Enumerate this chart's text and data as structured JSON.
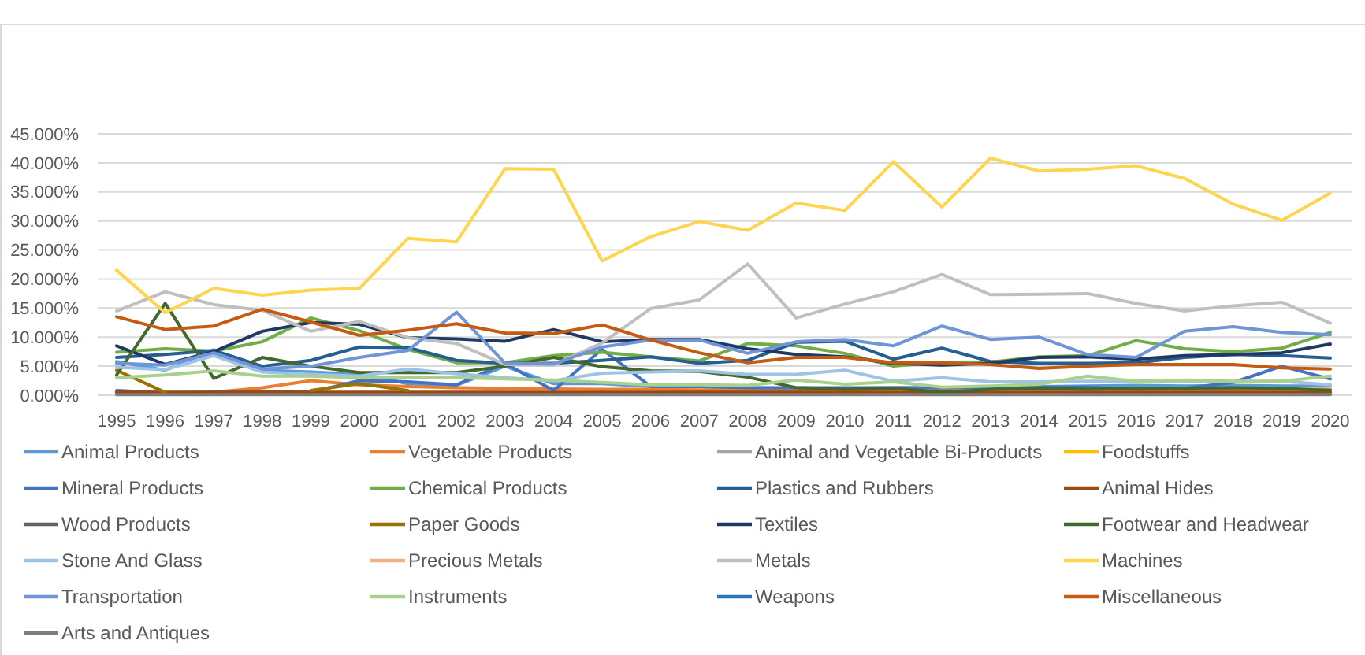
{
  "chart_data": {
    "type": "line",
    "categories": [
      "1995",
      "1996",
      "1997",
      "1998",
      "1999",
      "2000",
      "2001",
      "2002",
      "2003",
      "2004",
      "2005",
      "2006",
      "2007",
      "2008",
      "2009",
      "2010",
      "2011",
      "2012",
      "2013",
      "2014",
      "2015",
      "2016",
      "2017",
      "2018",
      "2019",
      "2020"
    ],
    "ylim": [
      0,
      45
    ],
    "yticks": [
      {
        "value": 0,
        "label": "0.000%"
      },
      {
        "value": 5,
        "label": "5.000%"
      },
      {
        "value": 10,
        "label": "10.000%"
      },
      {
        "value": 15,
        "label": "15.000%"
      },
      {
        "value": 20,
        "label": "20.000%"
      },
      {
        "value": 25,
        "label": "25.000%"
      },
      {
        "value": 30,
        "label": "30.000%"
      },
      {
        "value": 35,
        "label": "35.000%"
      },
      {
        "value": 40,
        "label": "40.000%"
      },
      {
        "value": 45,
        "label": "45.000%"
      }
    ],
    "grid": "y",
    "legend": "bottom",
    "marker": "none",
    "line_style": "solid",
    "series": [
      {
        "name": "Animal Products",
        "color": "#5b9bd5",
        "values": [
          5.8,
          4.3,
          7.8,
          4.3,
          4,
          3.6,
          2,
          1.7,
          5,
          2,
          2,
          1.5,
          1.5,
          1.3,
          1.2,
          1.2,
          1.3,
          1.3,
          1.5,
          1.5,
          1.6,
          1.7,
          1.6,
          1.7,
          1.6,
          1.6
        ]
      },
      {
        "name": "Vegetable Products",
        "color": "#ed7d31",
        "values": [
          0.5,
          0.3,
          0.5,
          1.3,
          2.5,
          1.8,
          1.5,
          1.3,
          1.2,
          1.1,
          1,
          1,
          0.9,
          0.9,
          0.9,
          0.9,
          1,
          1,
          1,
          1,
          1,
          1,
          1,
          1,
          1,
          1
        ]
      },
      {
        "name": "Animal and Vegetable Bi-Products",
        "color": "#a5a5a5",
        "values": [
          null,
          null,
          null,
          null,
          null,
          null,
          null,
          null,
          null,
          null,
          null,
          null,
          null,
          null,
          null,
          null,
          null,
          null,
          null,
          null,
          null,
          null,
          null,
          null,
          null,
          null
        ]
      },
      {
        "name": "Foodstuffs",
        "color": "#ffc000",
        "values": [
          null,
          null,
          null,
          null,
          null,
          null,
          null,
          null,
          null,
          null,
          null,
          null,
          null,
          null,
          null,
          null,
          null,
          null,
          null,
          null,
          null,
          null,
          null,
          null,
          null,
          null
        ]
      },
      {
        "name": "Mineral Products",
        "color": "#4472c4",
        "values": [
          0.8,
          0.4,
          0.5,
          0.7,
          0.5,
          2.5,
          2.3,
          1.8,
          5.5,
          0.8,
          7.9,
          1.5,
          1.5,
          1.3,
          1.3,
          1.3,
          1.3,
          1.3,
          1.4,
          1.4,
          1.4,
          1,
          1.2,
          2.2,
          5,
          2.8
        ]
      },
      {
        "name": "Chemical Products",
        "color": "#70ad47",
        "values": [
          7.4,
          8,
          7.6,
          9.2,
          13.3,
          11.1,
          7.9,
          5.6,
          5.6,
          6.8,
          7.4,
          6.6,
          5.9,
          8.9,
          8.5,
          7.2,
          5,
          5.7,
          5.7,
          6.6,
          6.8,
          9.4,
          8,
          7.5,
          8.1,
          10.8
        ]
      },
      {
        "name": "Plastics and Rubbers",
        "color": "#255e91",
        "values": [
          6.5,
          7,
          7.7,
          5,
          6,
          8.3,
          8.2,
          6,
          5.5,
          5.5,
          6,
          6.6,
          5.5,
          6,
          9.1,
          9.3,
          6.2,
          8.1,
          5.8,
          5.5,
          5.5,
          5.6,
          6.5,
          7,
          6.8,
          6.4
        ]
      },
      {
        "name": "Animal Hides",
        "color": "#9e480e",
        "values": [
          0.5,
          0.5,
          0.5,
          0.5,
          0.5,
          0.5,
          0.5,
          0.5,
          0.5,
          0.5,
          0.5,
          0.5,
          0.5,
          0.5,
          0.5,
          0.5,
          0.5,
          0.5,
          0.5,
          0.5,
          0.5,
          0.5,
          0.5,
          0.5,
          0.5,
          0.5
        ]
      },
      {
        "name": "Wood Products",
        "color": "#636363",
        "values": [
          null,
          null,
          null,
          null,
          null,
          null,
          null,
          null,
          null,
          null,
          null,
          null,
          null,
          null,
          null,
          null,
          null,
          null,
          null,
          null,
          null,
          null,
          null,
          null,
          null,
          null
        ]
      },
      {
        "name": "Paper Goods",
        "color": "#997300",
        "values": [
          4.3,
          0.5,
          null,
          null,
          0.8,
          2,
          0.8,
          null,
          null,
          null,
          null,
          null,
          null,
          null,
          null,
          null,
          null,
          null,
          null,
          null,
          null,
          null,
          null,
          null,
          null,
          null
        ]
      },
      {
        "name": "Textiles",
        "color": "#203864",
        "values": [
          8.5,
          5.3,
          7.5,
          11,
          12.5,
          12.2,
          9.9,
          9.7,
          9.3,
          11.3,
          9.2,
          9.6,
          9.6,
          8,
          7,
          6.6,
          5.5,
          5.2,
          5.5,
          6.5,
          6.6,
          6.2,
          6.8,
          7,
          7.3,
          8.8
        ]
      },
      {
        "name": "Footwear and Headwear",
        "color": "#43682b",
        "values": [
          3.5,
          15.8,
          2.9,
          6.5,
          5,
          3.9,
          3.9,
          3.9,
          5,
          6.5,
          4.9,
          4.2,
          4.1,
          3.1,
          1.3,
          1,
          1.2,
          0.5,
          1,
          1.2,
          1,
          1.2,
          1.2,
          1.3,
          1.2,
          0.8
        ]
      },
      {
        "name": "Stone And Glass",
        "color": "#9dc3e6",
        "values": [
          4.8,
          4.4,
          6.8,
          4,
          3.6,
          3.3,
          4.5,
          3.7,
          3,
          2.5,
          3.8,
          4,
          4.2,
          3.6,
          3.6,
          4.3,
          2.4,
          3,
          2.3,
          2.3,
          2.4,
          2.4,
          2.3,
          2.3,
          2.4,
          1.8
        ]
      },
      {
        "name": "Precious Metals",
        "color": "#f4b183",
        "values": [
          null,
          null,
          null,
          null,
          null,
          null,
          null,
          null,
          null,
          null,
          null,
          null,
          null,
          null,
          null,
          null,
          null,
          null,
          null,
          null,
          null,
          null,
          null,
          null,
          null,
          null
        ]
      },
      {
        "name": "Metals",
        "color": "#bfbfbf",
        "values": [
          14.5,
          17.8,
          15.6,
          14.6,
          11,
          12.7,
          9.9,
          8.9,
          5.3,
          5.2,
          9,
          14.9,
          16.4,
          22.6,
          13.3,
          15.7,
          17.8,
          20.8,
          17.3,
          17.4,
          17.5,
          15.8,
          14.5,
          15.4,
          16,
          12.4
        ]
      },
      {
        "name": "Machines",
        "color": "#ffd54f",
        "values": [
          21.5,
          14.2,
          18.4,
          17.2,
          18.1,
          18.4,
          27,
          26.4,
          39,
          38.9,
          23.1,
          27.3,
          29.9,
          28.4,
          33.1,
          31.8,
          40.2,
          32.4,
          40.8,
          38.6,
          38.9,
          39.5,
          37.3,
          32.9,
          30.1,
          34.8
        ]
      },
      {
        "name": "Transportation",
        "color": "#6f94d8",
        "values": [
          5.5,
          5.2,
          7.3,
          4.5,
          5,
          6.5,
          7.7,
          14.3,
          5.5,
          5.4,
          8.3,
          9.5,
          9.5,
          7.2,
          9.2,
          9.6,
          8.5,
          11.9,
          9.6,
          10,
          7,
          6.5,
          11,
          11.8,
          10.8,
          10.4
        ]
      },
      {
        "name": "Instruments",
        "color": "#a9d18e",
        "values": [
          3,
          3.5,
          4.2,
          3.3,
          3.3,
          3,
          3,
          3,
          2.8,
          2.6,
          2.2,
          1.8,
          1.8,
          1.7,
          2.6,
          1.9,
          2.3,
          1.4,
          1.6,
          1.9,
          3.3,
          2.4,
          2.6,
          2.4,
          2.4,
          3.3
        ]
      },
      {
        "name": "Weapons",
        "color": "#2e75b6",
        "values": [
          null,
          null,
          null,
          null,
          null,
          null,
          null,
          null,
          null,
          null,
          null,
          null,
          null,
          null,
          null,
          null,
          null,
          null,
          null,
          null,
          null,
          null,
          null,
          null,
          null,
          null
        ]
      },
      {
        "name": "Miscellaneous",
        "color": "#c55a11",
        "values": [
          13.5,
          11.3,
          11.9,
          14.8,
          12.6,
          10.3,
          11.2,
          12.3,
          10.7,
          10.6,
          12.1,
          9.5,
          7.3,
          5.6,
          6.5,
          6.5,
          5.6,
          5.6,
          5.3,
          4.6,
          5,
          5.3,
          5.3,
          5.3,
          4.7,
          4.5
        ]
      },
      {
        "name": "Arts and Antiques",
        "color": "#7f7f7f",
        "values": [
          0.1,
          0.1,
          0.1,
          0.1,
          0.1,
          0.1,
          0.1,
          0.1,
          0.1,
          0.1,
          0.1,
          0.1,
          0.1,
          0.1,
          0.1,
          0.1,
          0.1,
          0.1,
          0.1,
          0.1,
          0.1,
          0.1,
          0.1,
          0.1,
          0.1,
          0.1
        ]
      }
    ]
  }
}
